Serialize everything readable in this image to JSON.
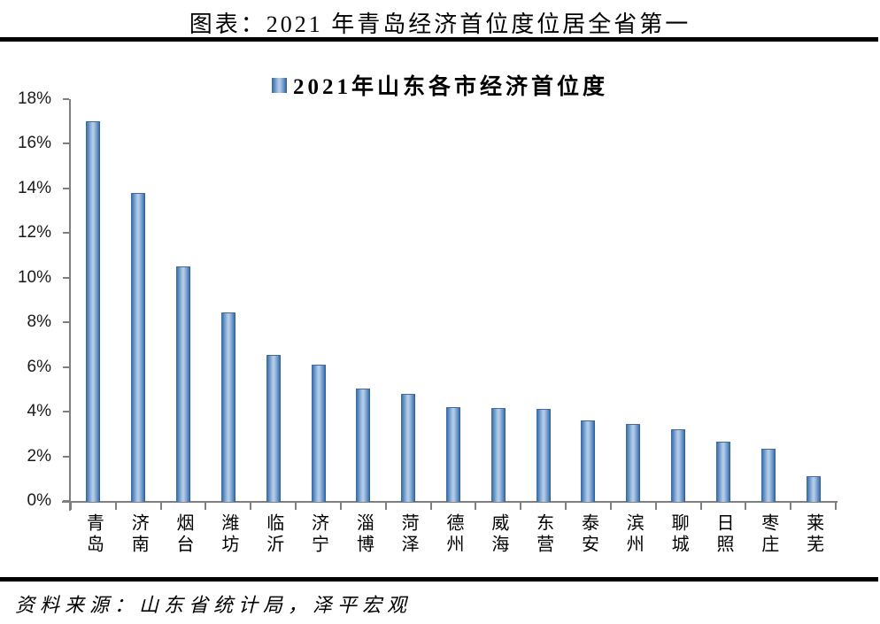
{
  "header": {
    "title": "图表：2021 年青岛经济首位度位居全省第一"
  },
  "chart_data": {
    "type": "bar",
    "title": "2021年山东各市经济首位度",
    "categories": [
      "青岛",
      "济南",
      "烟台",
      "潍坊",
      "临沂",
      "济宁",
      "淄博",
      "菏泽",
      "德州",
      "威海",
      "东营",
      "泰安",
      "滨州",
      "聊城",
      "日照",
      "枣庄",
      "莱芜"
    ],
    "values": [
      17.0,
      13.8,
      10.5,
      8.45,
      6.55,
      6.1,
      5.05,
      4.8,
      4.2,
      4.17,
      4.14,
      3.6,
      3.45,
      3.2,
      2.65,
      2.35,
      1.1
    ],
    "unit": "%",
    "xlabel": "",
    "ylabel": "",
    "ylim": [
      0,
      18
    ],
    "ytick_step": 2,
    "ytick_labels": [
      "0%",
      "2%",
      "4%",
      "6%",
      "8%",
      "10%",
      "12%",
      "14%",
      "16%",
      "18%"
    ],
    "legend_position": "top-center",
    "grid": false,
    "colors": {
      "bar_edge_dark": "#2a568f",
      "bar_mid": "#4d7fb9",
      "bar_center_light": "#b7cfea",
      "axis": "#7f7f7f",
      "text": "#000000"
    }
  },
  "footer": {
    "source": "资料来源：山东省统计局，泽平宏观"
  }
}
